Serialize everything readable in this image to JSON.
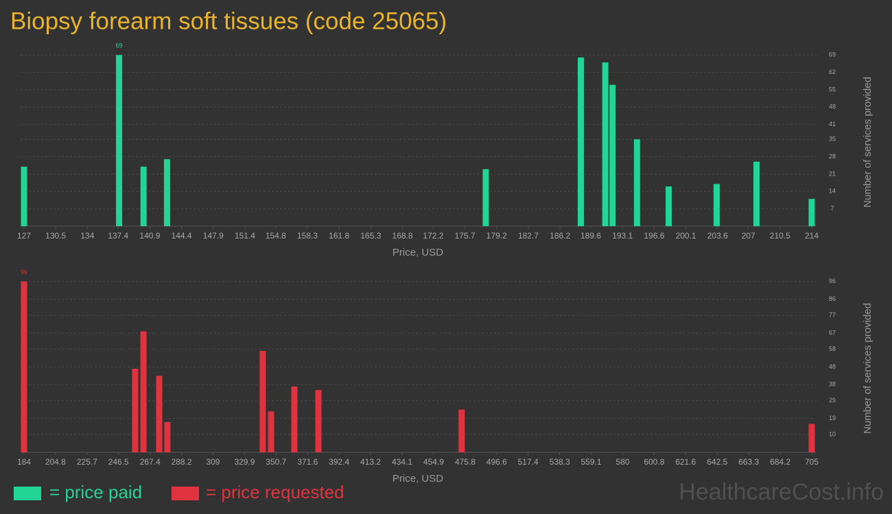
{
  "title": "Biopsy forearm soft tissues (code 25065)",
  "watermark": "HealthcareCost.info",
  "chart_data": [
    {
      "type": "bar",
      "xlabel": "Price, USD",
      "ylabel": "Number of services provided",
      "x": [
        127,
        137.5,
        140.2,
        142.8,
        178.0,
        188.5,
        191.2,
        192.0,
        194.7,
        198.2,
        203.5,
        207.9,
        214
      ],
      "series": [
        {
          "name": "= price paid",
          "color": "#22d496",
          "values": [
            24,
            69,
            24,
            27,
            23,
            68,
            66,
            57,
            35,
            16,
            17,
            26,
            11
          ],
          "value_labels": [
            null,
            "69",
            null,
            null,
            null,
            null,
            null,
            null,
            null,
            null,
            null,
            null,
            null
          ]
        }
      ],
      "xlim": [
        127,
        214
      ],
      "ylim": [
        0,
        71
      ],
      "xticks": [
        127,
        130.5,
        134,
        137.4,
        140.9,
        144.4,
        147.9,
        151.4,
        154.8,
        158.3,
        161.8,
        165.3,
        168.8,
        172.2,
        175.7,
        179.2,
        182.7,
        186.2,
        189.6,
        193.1,
        196.6,
        200.1,
        203.6,
        207,
        210.5,
        214
      ],
      "yticks": [
        7,
        14,
        21,
        28,
        35,
        41,
        48,
        55,
        62,
        69
      ],
      "grid": true
    },
    {
      "type": "bar",
      "xlabel": "Price, USD",
      "ylabel": "Number of services provided",
      "x": [
        184,
        257.5,
        263.0,
        273.4,
        278.8,
        341.9,
        347.4,
        362.8,
        378.7,
        473.5,
        705
      ],
      "series": [
        {
          "name": "= price requested",
          "color": "#e0323f",
          "values": [
            96,
            47,
            68,
            43,
            17,
            57,
            23,
            37,
            35,
            24,
            16
          ],
          "value_labels": [
            "96",
            null,
            null,
            null,
            null,
            null,
            null,
            null,
            null,
            null,
            null
          ]
        }
      ],
      "xlim": [
        184,
        705
      ],
      "ylim": [
        0,
        99
      ],
      "xticks": [
        184,
        204.8,
        225.7,
        246.5,
        267.4,
        288.2,
        309,
        329.9,
        350.7,
        371.6,
        392.4,
        413.2,
        434.1,
        454.9,
        475.8,
        496.6,
        517.4,
        538.3,
        559.1,
        580,
        600.8,
        621.6,
        642.5,
        663.3,
        684.2,
        705
      ],
      "yticks": [
        10,
        19,
        29,
        38,
        48,
        58,
        67,
        77,
        86,
        96
      ],
      "grid": true
    }
  ]
}
